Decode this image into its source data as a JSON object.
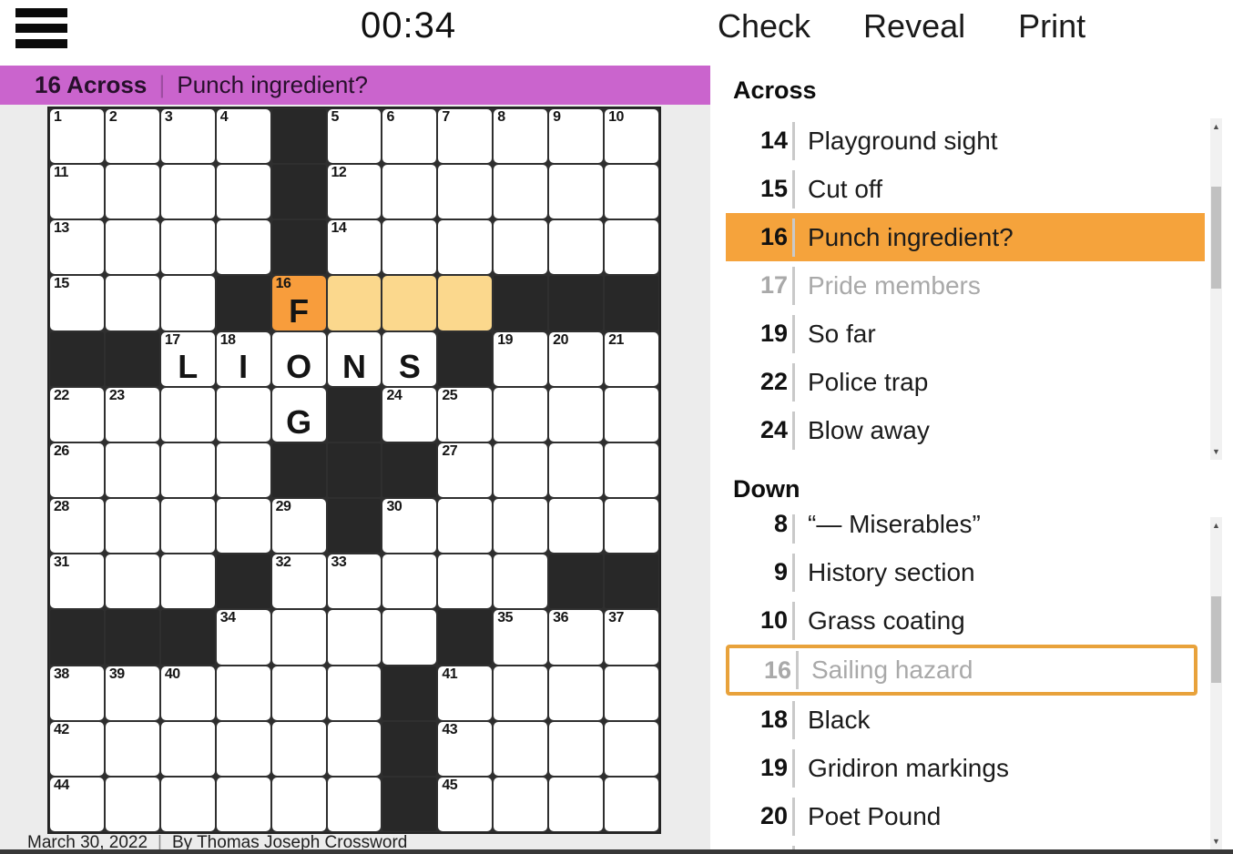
{
  "header": {
    "timer": "00:34",
    "check": "Check",
    "reveal": "Reveal",
    "print": "Print"
  },
  "banner": {
    "label": "16 Across",
    "separator": "|",
    "clue": "Punch ingredient?"
  },
  "grid": {
    "cols": 11,
    "rows": [
      [
        {
          "n": "1"
        },
        {
          "n": "2"
        },
        {
          "n": "3"
        },
        {
          "n": "4"
        },
        "#",
        {
          "n": "5"
        },
        {
          "n": "6"
        },
        {
          "n": "7"
        },
        {
          "n": "8"
        },
        {
          "n": "9"
        },
        {
          "n": "10"
        }
      ],
      [
        {
          "n": "11"
        },
        {},
        {},
        {},
        "#",
        {
          "n": "12"
        },
        {},
        {},
        {},
        {},
        {}
      ],
      [
        {
          "n": "13"
        },
        {},
        {},
        {},
        "#",
        {
          "n": "14"
        },
        {},
        {},
        {},
        {},
        {}
      ],
      [
        {
          "n": "15"
        },
        {},
        {},
        "#",
        {
          "n": "16",
          "l": "F",
          "h": "s"
        },
        {
          "h": "w"
        },
        {
          "h": "w"
        },
        {
          "h": "w"
        },
        "#",
        "#",
        "#"
      ],
      [
        "#",
        "#",
        {
          "n": "17",
          "l": "L"
        },
        {
          "n": "18",
          "l": "I"
        },
        {
          "l": "O"
        },
        {
          "l": "N"
        },
        {
          "l": "S"
        },
        "#",
        {
          "n": "19"
        },
        {
          "n": "20"
        },
        {
          "n": "21"
        }
      ],
      [
        {
          "n": "22"
        },
        {
          "n": "23"
        },
        {},
        {},
        {
          "l": "G"
        },
        "#",
        {
          "n": "24"
        },
        {
          "n": "25"
        },
        {},
        {},
        {}
      ],
      [
        {
          "n": "26"
        },
        {},
        {},
        {},
        "#",
        "#",
        "#",
        {
          "n": "27"
        },
        {},
        {},
        {}
      ],
      [
        {
          "n": "28"
        },
        {},
        {},
        {},
        {
          "n": "29"
        },
        "#",
        {
          "n": "30"
        },
        {},
        {},
        {},
        {}
      ],
      [
        {
          "n": "31"
        },
        {},
        {},
        "#",
        {
          "n": "32"
        },
        {
          "n": "33"
        },
        {},
        {},
        {},
        "#",
        "#"
      ],
      [
        "#",
        "#",
        "#",
        {
          "n": "34"
        },
        {},
        {},
        {},
        "#",
        {
          "n": "35"
        },
        {
          "n": "36"
        },
        {
          "n": "37"
        }
      ],
      [
        {
          "n": "38"
        },
        {
          "n": "39"
        },
        {
          "n": "40"
        },
        {},
        {},
        {},
        "#",
        {
          "n": "41"
        },
        {},
        {},
        {}
      ],
      [
        {
          "n": "42"
        },
        {},
        {},
        {},
        {},
        {},
        "#",
        {
          "n": "43"
        },
        {},
        {},
        {}
      ],
      [
        {
          "n": "44"
        },
        {},
        {},
        {},
        {},
        {},
        "#",
        {
          "n": "45"
        },
        {},
        {},
        {}
      ]
    ]
  },
  "across": {
    "title": "Across",
    "clues": [
      {
        "num": "14",
        "text": "Playground sight",
        "state": "normal"
      },
      {
        "num": "15",
        "text": "Cut off",
        "state": "normal"
      },
      {
        "num": "16",
        "text": "Punch ingredient?",
        "state": "selected"
      },
      {
        "num": "17",
        "text": "Pride members",
        "state": "filled"
      },
      {
        "num": "19",
        "text": "So far",
        "state": "normal"
      },
      {
        "num": "22",
        "text": "Police trap",
        "state": "normal"
      },
      {
        "num": "24",
        "text": "Blow away",
        "state": "normal"
      }
    ]
  },
  "down": {
    "title": "Down",
    "clues": [
      {
        "num": "8",
        "text": "“— Miserables”",
        "state": "normal",
        "clipped": true
      },
      {
        "num": "9",
        "text": "History section",
        "state": "normal"
      },
      {
        "num": "10",
        "text": "Grass coating",
        "state": "normal"
      },
      {
        "num": "16",
        "text": "Sailing hazard",
        "state": "outlined"
      },
      {
        "num": "18",
        "text": "Black",
        "state": "normal"
      },
      {
        "num": "19",
        "text": "Gridiron markings",
        "state": "normal"
      },
      {
        "num": "20",
        "text": "Poet Pound",
        "state": "normal"
      },
      {
        "num": "",
        "text": "",
        "state": "partial"
      }
    ]
  },
  "scrollbar": {
    "up": "▲",
    "down": "▼"
  },
  "footer": {
    "date": "March 30, 2022",
    "separator": "|",
    "byline": "By Thomas Joseph Crossword"
  },
  "colors": {
    "banner": "#ca64cd",
    "selected_cell": "#f89d3c",
    "word_highlight": "#fbd88d",
    "selected_clue_bg": "#f5a33c",
    "outline_orange": "#e8a23b",
    "black_cell": "#282828",
    "filled_clue_text": "#a9a9a9"
  }
}
